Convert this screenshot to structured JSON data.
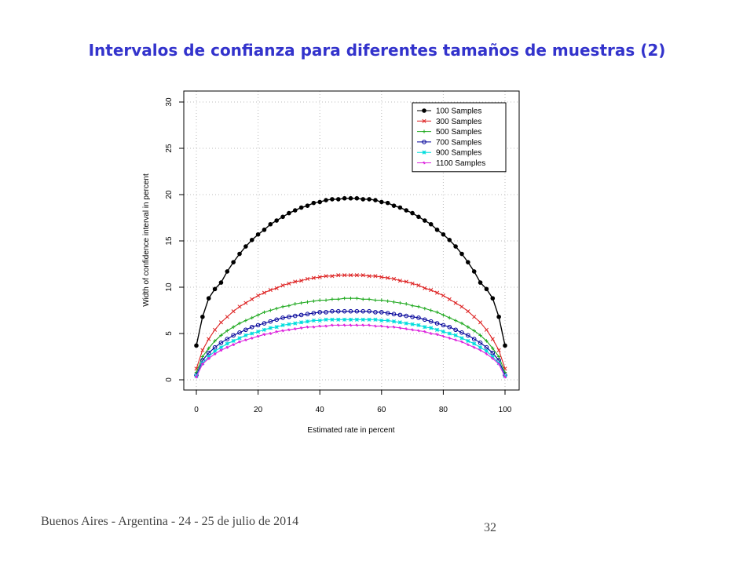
{
  "slide": {
    "title": "Intervalos de confianza para diferentes tamaños de muestras (2)",
    "footer": "Buenos Aires - Argentina - 24 - 25 de julio de 2014",
    "page_number": "32"
  },
  "chart_data": {
    "type": "line",
    "title": "",
    "xlabel": "Estimated rate in percent",
    "ylabel": "Width of confidence interval in percent",
    "xlim": [
      0,
      100
    ],
    "ylim": [
      0,
      30
    ],
    "xticks": [
      0,
      20,
      40,
      60,
      80,
      100
    ],
    "yticks": [
      0,
      5,
      10,
      15,
      20,
      25,
      30
    ],
    "grid": true,
    "legend_position": "top-right",
    "x": [
      0,
      2,
      4,
      6,
      8,
      10,
      12,
      14,
      16,
      18,
      20,
      22,
      24,
      26,
      28,
      30,
      32,
      34,
      36,
      38,
      40,
      42,
      44,
      46,
      48,
      50,
      52,
      54,
      56,
      58,
      60,
      62,
      64,
      66,
      68,
      70,
      72,
      74,
      76,
      78,
      80,
      82,
      84,
      86,
      88,
      90,
      92,
      94,
      96,
      98,
      100
    ],
    "series": [
      {
        "name": "100 Samples",
        "color": "#000000",
        "marker": "circle-filled",
        "values": [
          3.7,
          6.8,
          8.8,
          9.8,
          10.5,
          11.7,
          12.7,
          13.6,
          14.4,
          15.1,
          15.7,
          16.2,
          16.8,
          17.2,
          17.6,
          18.0,
          18.3,
          18.6,
          18.8,
          19.1,
          19.2,
          19.4,
          19.5,
          19.5,
          19.6,
          19.6,
          19.6,
          19.5,
          19.5,
          19.4,
          19.2,
          19.1,
          18.8,
          18.6,
          18.3,
          18.0,
          17.6,
          17.2,
          16.8,
          16.2,
          15.7,
          15.1,
          14.4,
          13.6,
          12.7,
          11.7,
          10.5,
          9.8,
          8.8,
          6.8,
          3.7
        ]
      },
      {
        "name": "300 Samples",
        "color": "#dd2222",
        "marker": "x",
        "values": [
          1.2,
          3.2,
          4.4,
          5.4,
          6.2,
          6.8,
          7.4,
          7.9,
          8.3,
          8.7,
          9.1,
          9.4,
          9.7,
          9.9,
          10.2,
          10.4,
          10.6,
          10.7,
          10.9,
          11.0,
          11.1,
          11.2,
          11.2,
          11.3,
          11.3,
          11.3,
          11.3,
          11.3,
          11.2,
          11.2,
          11.1,
          11.0,
          10.9,
          10.7,
          10.6,
          10.4,
          10.2,
          9.9,
          9.7,
          9.4,
          9.1,
          8.7,
          8.3,
          7.9,
          7.4,
          6.8,
          6.2,
          5.4,
          4.4,
          3.2,
          1.2
        ]
      },
      {
        "name": "500 Samples",
        "color": "#22aa22",
        "marker": "plus",
        "values": [
          0.8,
          2.5,
          3.4,
          4.2,
          4.8,
          5.3,
          5.7,
          6.1,
          6.4,
          6.7,
          7.0,
          7.3,
          7.5,
          7.7,
          7.9,
          8.0,
          8.2,
          8.3,
          8.4,
          8.5,
          8.6,
          8.6,
          8.7,
          8.7,
          8.8,
          8.8,
          8.8,
          8.7,
          8.7,
          8.6,
          8.6,
          8.5,
          8.4,
          8.3,
          8.2,
          8.0,
          7.9,
          7.7,
          7.5,
          7.3,
          7.0,
          6.7,
          6.4,
          6.1,
          5.7,
          5.3,
          4.8,
          4.2,
          3.4,
          2.5,
          0.8
        ]
      },
      {
        "name": "700 Samples",
        "color": "#000099",
        "marker": "circle-open",
        "values": [
          0.5,
          2.1,
          2.9,
          3.5,
          4.0,
          4.4,
          4.8,
          5.1,
          5.4,
          5.7,
          5.9,
          6.1,
          6.3,
          6.5,
          6.7,
          6.8,
          6.9,
          7.0,
          7.1,
          7.2,
          7.3,
          7.3,
          7.4,
          7.4,
          7.4,
          7.4,
          7.4,
          7.4,
          7.4,
          7.3,
          7.3,
          7.2,
          7.1,
          7.0,
          6.9,
          6.8,
          6.7,
          6.5,
          6.3,
          6.1,
          5.9,
          5.7,
          5.4,
          5.1,
          4.8,
          4.4,
          4.0,
          3.5,
          2.9,
          2.1,
          0.5
        ]
      },
      {
        "name": "900 Samples",
        "color": "#00dddd",
        "marker": "star",
        "values": [
          0.4,
          1.8,
          2.5,
          3.1,
          3.5,
          3.9,
          4.2,
          4.5,
          4.8,
          5.0,
          5.2,
          5.4,
          5.6,
          5.7,
          5.9,
          6.0,
          6.1,
          6.2,
          6.3,
          6.4,
          6.4,
          6.5,
          6.5,
          6.5,
          6.5,
          6.5,
          6.5,
          6.5,
          6.5,
          6.5,
          6.4,
          6.4,
          6.3,
          6.2,
          6.1,
          6.0,
          5.9,
          5.7,
          5.6,
          5.4,
          5.2,
          5.0,
          4.8,
          4.5,
          4.2,
          3.9,
          3.5,
          3.1,
          2.5,
          1.8,
          0.4
        ]
      },
      {
        "name": "1100 Samples",
        "color": "#dd22dd",
        "marker": "star-small",
        "values": [
          0.3,
          1.7,
          2.3,
          2.8,
          3.2,
          3.5,
          3.8,
          4.1,
          4.3,
          4.5,
          4.7,
          4.9,
          5.0,
          5.2,
          5.3,
          5.4,
          5.5,
          5.6,
          5.7,
          5.7,
          5.8,
          5.8,
          5.9,
          5.9,
          5.9,
          5.9,
          5.9,
          5.9,
          5.9,
          5.8,
          5.8,
          5.7,
          5.7,
          5.6,
          5.5,
          5.4,
          5.3,
          5.2,
          5.0,
          4.9,
          4.7,
          4.5,
          4.3,
          4.1,
          3.8,
          3.5,
          3.2,
          2.8,
          2.3,
          1.7,
          0.3
        ]
      }
    ]
  }
}
